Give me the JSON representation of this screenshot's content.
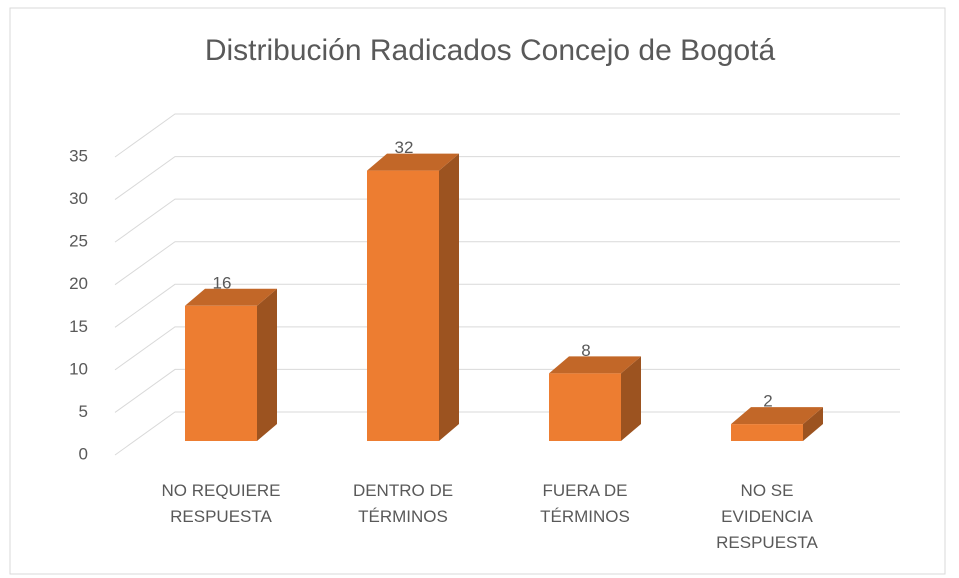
{
  "chart_data": {
    "type": "bar3d",
    "title": "Distribución Radicados Concejo de Bogotá",
    "categories": [
      "NO REQUIERE RESPUESTA",
      "DENTRO DE TÉRMINOS",
      "FUERA DE TÉRMINOS",
      "NO SE EVIDENCIA RESPUESTA"
    ],
    "values": [
      16,
      32,
      8,
      2
    ],
    "color": "#ed7d31",
    "ylim": [
      0,
      35
    ],
    "yticks": [
      0,
      5,
      10,
      15,
      20,
      25,
      30,
      35
    ],
    "grid": true
  }
}
